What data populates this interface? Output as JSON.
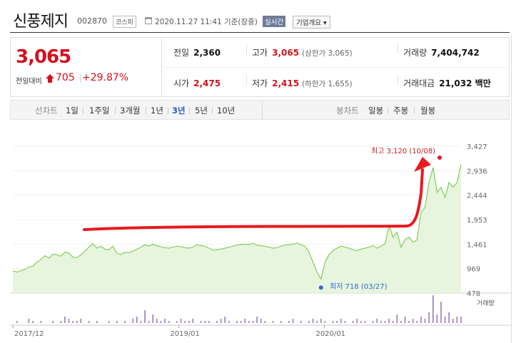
{
  "header": {
    "name": "신풍제지",
    "code": "002870",
    "market": "코스피",
    "timestamp": "2020.11.27 11:41 기준(장중)",
    "realtime": "실시간",
    "company_info": "기업개요"
  },
  "quote": {
    "price": "3,065",
    "change_label": "전일대비",
    "change": "705",
    "separator": "|",
    "rate": "+29.87%",
    "prev_close_label": "전일",
    "prev_close": "2,360",
    "high_label": "고가",
    "high": "3,065",
    "upper_limit": "(상한가 3,065)",
    "volume_label": "거래량",
    "volume": "7,404,742",
    "open_label": "시가",
    "open": "2,475",
    "low_label": "저가",
    "low": "2,415",
    "lower_limit": "(하한가 1,655)",
    "trade_value_label": "거래대금",
    "trade_value": "21,032 백만"
  },
  "period_bar": {
    "line_label": "선차트",
    "periods": [
      "1일",
      "1주일",
      "3개월",
      "1년",
      "3년",
      "5년",
      "10년"
    ],
    "selected": "3년",
    "candle_label": "봉차트",
    "candles": [
      "일봉",
      "주봉",
      "월봉"
    ]
  },
  "colors": {
    "accent": "#d4111d",
    "line": "#82cd5a",
    "fill": "#e7f5de",
    "low": "#2d6bd1"
  },
  "chart_data": {
    "type": "area",
    "x_labels": [
      "2017/12",
      "2019/01",
      "2020/01"
    ],
    "ylim": [
      478,
      3427
    ],
    "y_ticks": [
      "3,427",
      "2,936",
      "2,444",
      "1,953",
      "1,461",
      "969",
      "478"
    ],
    "high_annotation": "최고 3,120 (10/08)",
    "low_annotation": "최저 718 (03/27)",
    "volume_legend": "거래량",
    "price_series": [
      920,
      900,
      930,
      950,
      1000,
      1020,
      1100,
      1150,
      1230,
      1180,
      1260,
      1250,
      1220,
      1300,
      1280,
      1200,
      1190,
      1250,
      1320,
      1400,
      1470,
      1380,
      1420,
      1360,
      1350,
      1420,
      1280,
      1250,
      1300,
      1290,
      1320,
      1360,
      1400,
      1450,
      1420,
      1460,
      1430,
      1410,
      1390,
      1380,
      1400,
      1420,
      1410,
      1390,
      1380,
      1400,
      1450,
      1430,
      1420,
      1380,
      1340,
      1350,
      1360,
      1380,
      1400,
      1420,
      1440,
      1450,
      1460,
      1450,
      1480,
      1440,
      1430,
      1420,
      1400,
      1380,
      1390,
      1420,
      1440,
      1450,
      1460,
      1480,
      1450,
      1420,
      1300,
      1100,
      900,
      760,
      1100,
      1250,
      1330,
      1380,
      1420,
      1400,
      1380,
      1350,
      1330,
      1360,
      1380,
      1400,
      1430,
      1380,
      1420,
      1470,
      1830,
      1600,
      1700,
      1400,
      1550,
      1600,
      1500,
      1550,
      2100,
      2200,
      2700,
      3000,
      2500,
      2600,
      2400,
      2700,
      2600,
      2700,
      3065
    ],
    "volume_series": [
      0,
      1,
      0,
      0,
      2,
      1,
      0,
      1,
      0,
      0,
      1,
      0,
      1,
      3,
      2,
      1,
      1,
      2,
      0,
      1,
      0,
      1,
      0,
      0,
      1,
      0,
      1,
      0,
      1,
      0,
      2,
      3,
      1,
      6,
      1,
      4,
      2,
      1,
      2,
      1,
      0,
      1,
      2,
      1,
      1,
      2,
      0,
      1,
      1,
      1,
      0,
      1,
      2,
      3,
      1,
      0,
      1,
      1,
      2,
      1,
      1,
      3,
      2,
      1,
      0,
      1,
      0,
      1,
      0,
      1,
      2,
      0,
      1,
      0,
      1,
      2,
      1,
      2,
      1,
      0,
      1,
      1,
      2,
      1,
      0,
      1,
      2,
      1,
      1,
      0,
      1,
      2,
      1,
      1,
      2,
      1,
      4,
      1,
      3,
      1,
      2,
      1,
      3,
      2,
      5,
      13,
      4,
      10,
      3,
      5,
      2,
      3,
      3
    ],
    "volume_max": 14
  }
}
